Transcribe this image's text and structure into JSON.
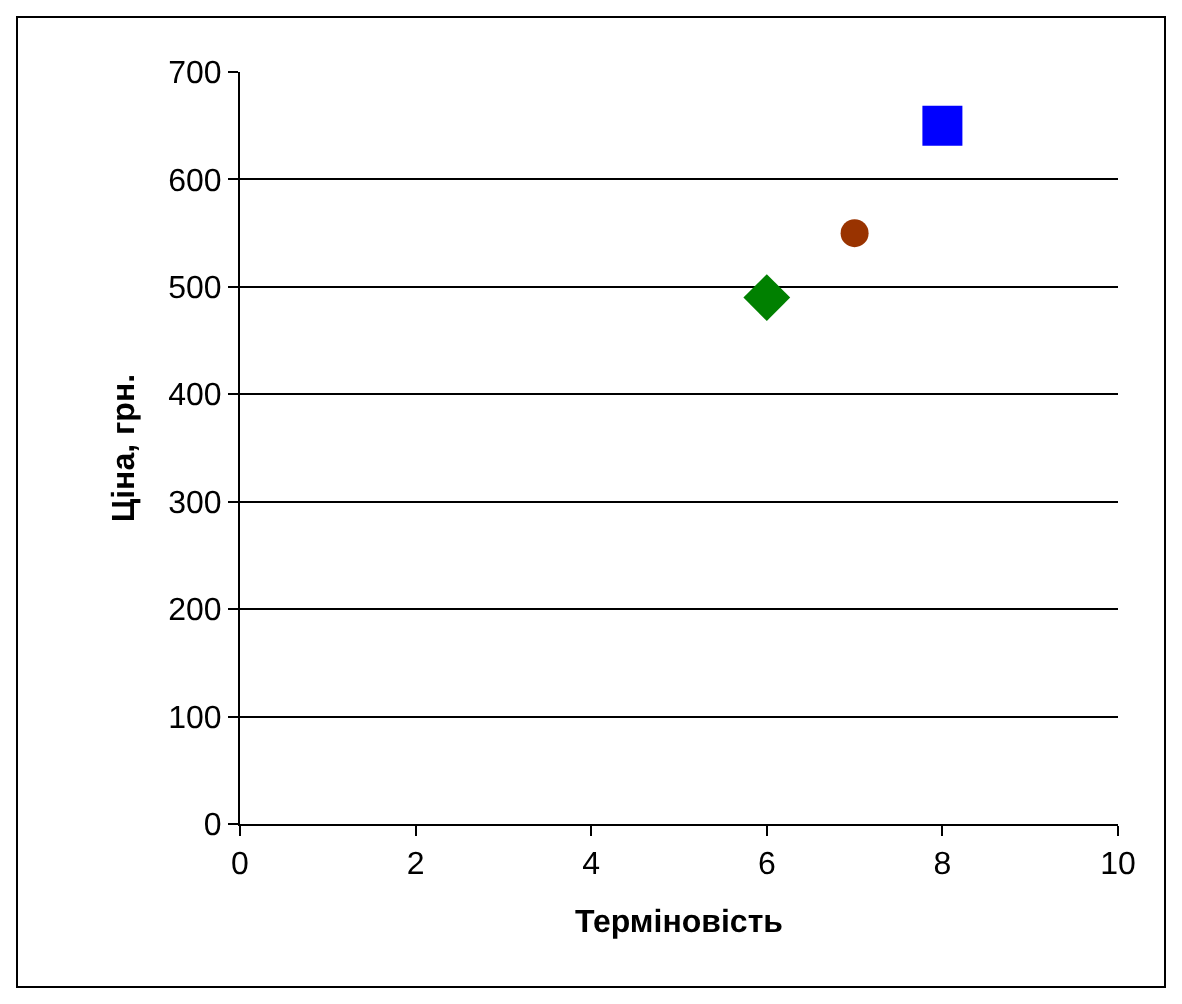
{
  "chart_data": {
    "type": "scatter",
    "xlabel": "Терміновість",
    "ylabel": "Ціна, грн.",
    "series": [
      {
        "color": "#008000",
        "marker": "diamond",
        "x": [
          6
        ],
        "values": [
          490
        ]
      },
      {
        "color": "#993300",
        "marker": "circle",
        "x": [
          7
        ],
        "values": [
          550
        ]
      },
      {
        "color": "#0000ff",
        "marker": "square",
        "x": [
          8
        ],
        "values": [
          650
        ]
      }
    ],
    "xlim": [
      0,
      10
    ],
    "xticks": [
      0,
      2,
      4,
      6,
      8,
      10
    ],
    "ylim": [
      0,
      700
    ],
    "yticks": [
      0,
      100,
      200,
      300,
      400,
      500,
      600,
      700
    ],
    "grid": "y"
  }
}
